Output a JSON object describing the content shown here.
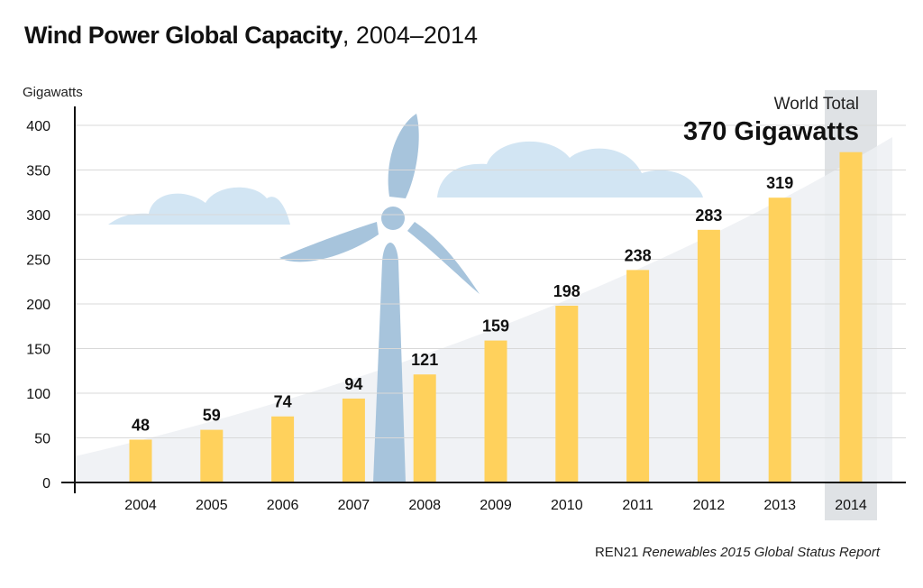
{
  "title": {
    "bold": "Wind Power Global Capacity",
    "rest": ", 2004–2014"
  },
  "source": {
    "org": "REN21",
    "report": "Renewables 2015 Global Status Report"
  },
  "callout": {
    "label": "World Total",
    "value": "370 Gigawatts"
  },
  "colors": {
    "bar": "#ffd15c",
    "highlight": "#dfe2e5",
    "trend_area": "#edf0f3",
    "turbine": "#a7c4dc",
    "cloud": "#d2e5f3",
    "grid": "#d9d9d9",
    "axis": "#111111"
  },
  "chart_data": {
    "type": "bar",
    "categories": [
      "2004",
      "2005",
      "2006",
      "2007",
      "2008",
      "2009",
      "2010",
      "2011",
      "2012",
      "2013",
      "2014"
    ],
    "values": [
      48,
      59,
      74,
      94,
      121,
      159,
      198,
      238,
      283,
      319,
      370
    ],
    "data_labels": [
      "48",
      "59",
      "74",
      "94",
      "121",
      "159",
      "198",
      "238",
      "283",
      "319",
      ""
    ],
    "ylabel": "Gigawatts",
    "ylim": [
      0,
      400
    ],
    "yticks": [
      0,
      50,
      100,
      150,
      200,
      250,
      300,
      350,
      400
    ],
    "grid": true,
    "highlighted_category": "2014"
  }
}
